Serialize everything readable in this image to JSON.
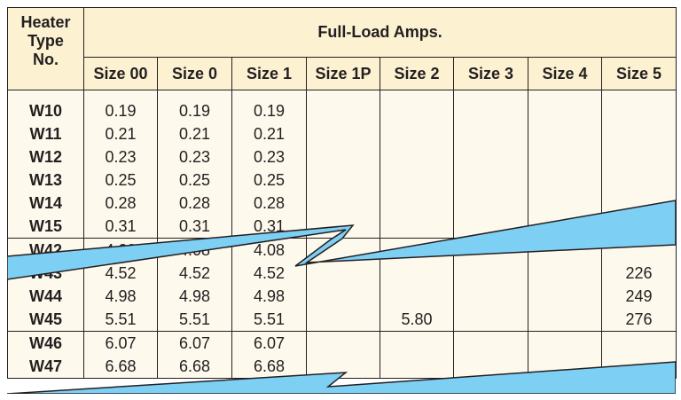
{
  "header": {
    "type_label": "Heater Type No.",
    "type_lines": [
      "Heater",
      "Type",
      "No."
    ],
    "group_label": "Full-Load Amps.",
    "sizes": [
      "Size 00",
      "Size 0",
      "Size 1",
      "Size 1P",
      "Size 2",
      "Size 3",
      "Size 4",
      "Size 5"
    ]
  },
  "rows": [
    {
      "type": "W10",
      "values": [
        "0.19",
        "0.19",
        "0.19",
        "",
        "",
        "",
        "",
        ""
      ]
    },
    {
      "type": "W11",
      "values": [
        "0.21",
        "0.21",
        "0.21",
        "",
        "",
        "",
        "",
        ""
      ]
    },
    {
      "type": "W12",
      "values": [
        "0.23",
        "0.23",
        "0.23",
        "",
        "",
        "",
        "",
        ""
      ]
    },
    {
      "type": "W13",
      "values": [
        "0.25",
        "0.25",
        "0.25",
        "",
        "",
        "",
        "",
        ""
      ]
    },
    {
      "type": "W14",
      "values": [
        "0.28",
        "0.28",
        "0.28",
        "",
        "",
        "",
        "",
        ""
      ]
    },
    {
      "type": "W15",
      "values": [
        "0.31",
        "0.31",
        "0.31",
        "",
        "",
        "",
        "",
        ""
      ]
    },
    {
      "type": "W42",
      "values": [
        "4.08",
        "4.08",
        "4.08",
        "",
        "",
        "",
        "",
        ""
      ]
    },
    {
      "type": "W43",
      "values": [
        "4.52",
        "4.52",
        "4.52",
        "",
        "",
        "",
        "",
        "226"
      ]
    },
    {
      "type": "W44",
      "values": [
        "4.98",
        "4.98",
        "4.98",
        "",
        "",
        "",
        "",
        "249"
      ]
    },
    {
      "type": "W45",
      "values": [
        "5.51",
        "5.51",
        "5.51",
        "",
        "5.80",
        "",
        "",
        "276"
      ]
    },
    {
      "type": "W46",
      "values": [
        "6.07",
        "6.07",
        "6.07",
        "",
        "",
        "",
        "",
        ""
      ]
    },
    {
      "type": "W47",
      "values": [
        "6.68",
        "6.68",
        "6.68",
        "",
        "",
        "",
        "",
        ""
      ]
    }
  ],
  "colors": {
    "break_fill": "#7ecff4",
    "break_stroke": "#231f20",
    "header_bg": "#fcf2d2",
    "cell_bg": "#fdf9ec",
    "text": "#231f20"
  }
}
